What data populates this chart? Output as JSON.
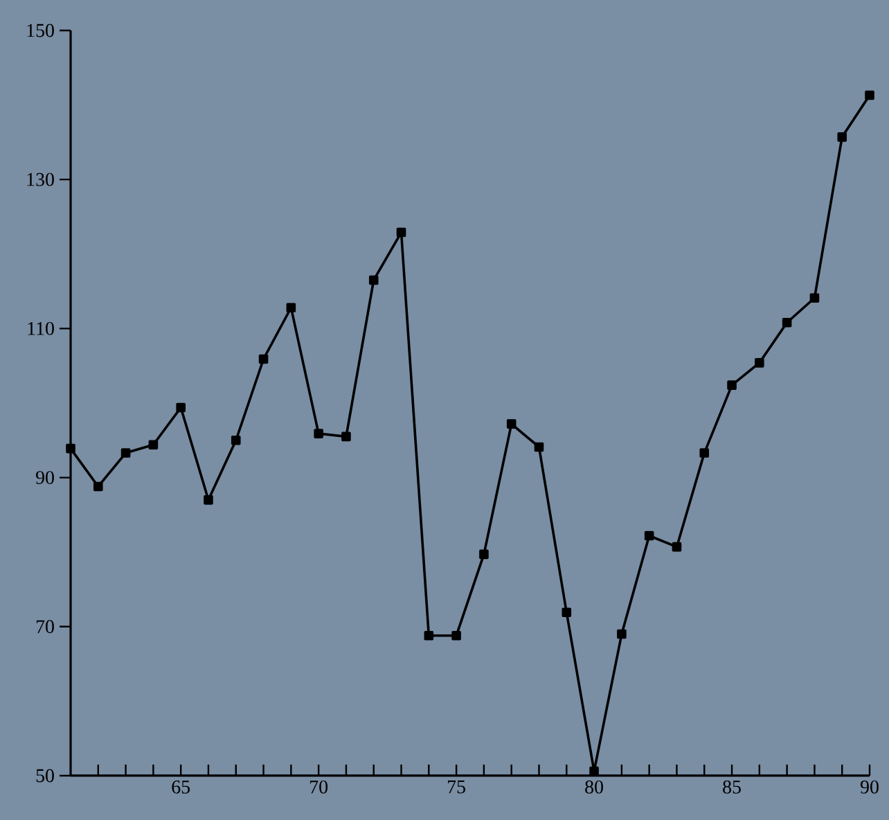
{
  "chart_data": {
    "type": "line",
    "x": [
      61,
      62,
      63,
      64,
      65,
      66,
      67,
      68,
      69,
      70,
      71,
      72,
      73,
      74,
      75,
      76,
      77,
      78,
      79,
      80,
      81,
      82,
      83,
      84,
      85,
      86,
      87,
      88,
      89,
      90
    ],
    "values": [
      93.9,
      88.8,
      93.3,
      94.4,
      99.4,
      87.0,
      95.0,
      105.9,
      112.8,
      95.9,
      95.5,
      116.5,
      122.9,
      68.8,
      68.8,
      79.7,
      97.2,
      94.1,
      71.9,
      50.6,
      69.0,
      82.2,
      80.7,
      93.3,
      102.4,
      105.4,
      110.8,
      114.1,
      135.7,
      141.3
    ],
    "color": "#000000",
    "marker": "square",
    "line_style": "solid",
    "xlim": [
      61,
      90
    ],
    "ylim": [
      50,
      150
    ],
    "xticks": [
      {
        "value": 62,
        "label": null
      },
      {
        "value": 63,
        "label": null
      },
      {
        "value": 64,
        "label": null
      },
      65,
      {
        "value": 66,
        "label": null
      },
      {
        "value": 67,
        "label": null
      },
      {
        "value": 68,
        "label": null
      },
      {
        "value": 69,
        "label": null
      },
      70,
      {
        "value": 71,
        "label": null
      },
      {
        "value": 72,
        "label": null
      },
      {
        "value": 73,
        "label": null
      },
      {
        "value": 74,
        "label": null
      },
      75,
      {
        "value": 76,
        "label": null
      },
      {
        "value": 77,
        "label": null
      },
      {
        "value": 78,
        "label": null
      },
      {
        "value": 79,
        "label": null
      },
      80,
      {
        "value": 81,
        "label": null
      },
      {
        "value": 82,
        "label": null
      },
      {
        "value": 83,
        "label": null
      },
      {
        "value": 84,
        "label": null
      },
      85,
      {
        "value": 86,
        "label": null
      },
      {
        "value": 87,
        "label": null
      },
      {
        "value": 88,
        "label": null
      },
      {
        "value": 89,
        "label": null
      },
      90
    ],
    "yticks": [
      50,
      70,
      90,
      110,
      130,
      150
    ]
  }
}
